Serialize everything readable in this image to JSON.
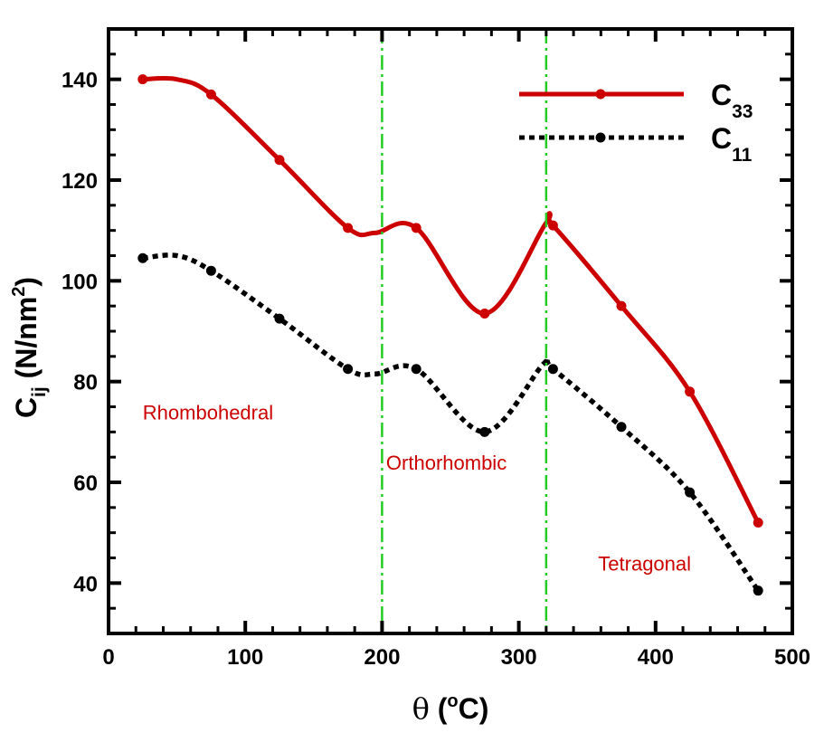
{
  "chart_data": {
    "type": "line",
    "title": "",
    "xlabel": "θ (oC)",
    "xlabel_parts": {
      "theta": "θ",
      "open": " (",
      "sup": "o",
      "unit": "C)"
    },
    "ylabel": "Cij (N/nm2)",
    "ylabel_parts": {
      "base": "C",
      "sub": "ij",
      "open": " (N/nm",
      "sup": "2",
      "close": ")"
    },
    "xlim": [
      0,
      500
    ],
    "ylim": [
      30,
      150
    ],
    "x_ticks": [
      0,
      100,
      200,
      300,
      400,
      500
    ],
    "y_ticks": [
      40,
      60,
      80,
      100,
      120,
      140
    ],
    "x_tick_labels": [
      "0",
      "100",
      "200",
      "300",
      "400",
      "500"
    ],
    "y_tick_labels": [
      "40",
      "60",
      "80",
      "100",
      "120",
      "140"
    ],
    "grid": false,
    "legend_position": "top-right",
    "series": [
      {
        "name": "C33",
        "label_base": "C",
        "label_sub": "33",
        "style": "solid",
        "color": "#cc0000",
        "x": [
          25,
          75,
          125,
          175,
          225,
          275,
          325,
          375,
          425,
          475
        ],
        "y": [
          140,
          137,
          124,
          110.5,
          110.5,
          93.5,
          111,
          95,
          78,
          52
        ],
        "curve_through": [
          [
            25,
            140
          ],
          [
            50,
            140
          ],
          [
            75,
            137
          ],
          [
            125,
            124
          ],
          [
            175,
            110.5
          ],
          [
            195,
            109.5
          ],
          [
            225,
            110.5
          ],
          [
            275,
            93.5
          ],
          [
            320,
            111.5
          ],
          [
            325,
            111
          ],
          [
            375,
            95
          ],
          [
            425,
            78
          ],
          [
            475,
            52
          ]
        ]
      },
      {
        "name": "C11",
        "label_base": "C",
        "label_sub": "11",
        "style": "dotted",
        "color": "#000000",
        "x": [
          25,
          75,
          125,
          175,
          225,
          275,
          325,
          375,
          425,
          475
        ],
        "y": [
          104.5,
          102,
          92.5,
          82.5,
          82.5,
          70,
          82.5,
          71,
          58,
          38.5
        ],
        "curve_through": [
          [
            25,
            104.5
          ],
          [
            50,
            105
          ],
          [
            75,
            102
          ],
          [
            125,
            92.5
          ],
          [
            175,
            82.5
          ],
          [
            195,
            81.5
          ],
          [
            225,
            82.5
          ],
          [
            275,
            70
          ],
          [
            318,
            83.5
          ],
          [
            325,
            82.5
          ],
          [
            375,
            71
          ],
          [
            425,
            58
          ],
          [
            475,
            38.5
          ]
        ]
      }
    ],
    "vlines": [
      {
        "x": 200,
        "color": "#22cc22",
        "style": "dash-dot"
      },
      {
        "x": 320,
        "color": "#22cc22",
        "style": "dash-dot"
      }
    ],
    "annotations": [
      {
        "text": "Rhombohedral",
        "x": 25,
        "y": 72.5,
        "color": "#cc0000"
      },
      {
        "text": "Orthorhombic",
        "x": 203,
        "y": 62.5,
        "color": "#cc0000"
      },
      {
        "text": "Tetragonal",
        "x": 358,
        "y": 42.5,
        "color": "#cc0000"
      }
    ]
  }
}
